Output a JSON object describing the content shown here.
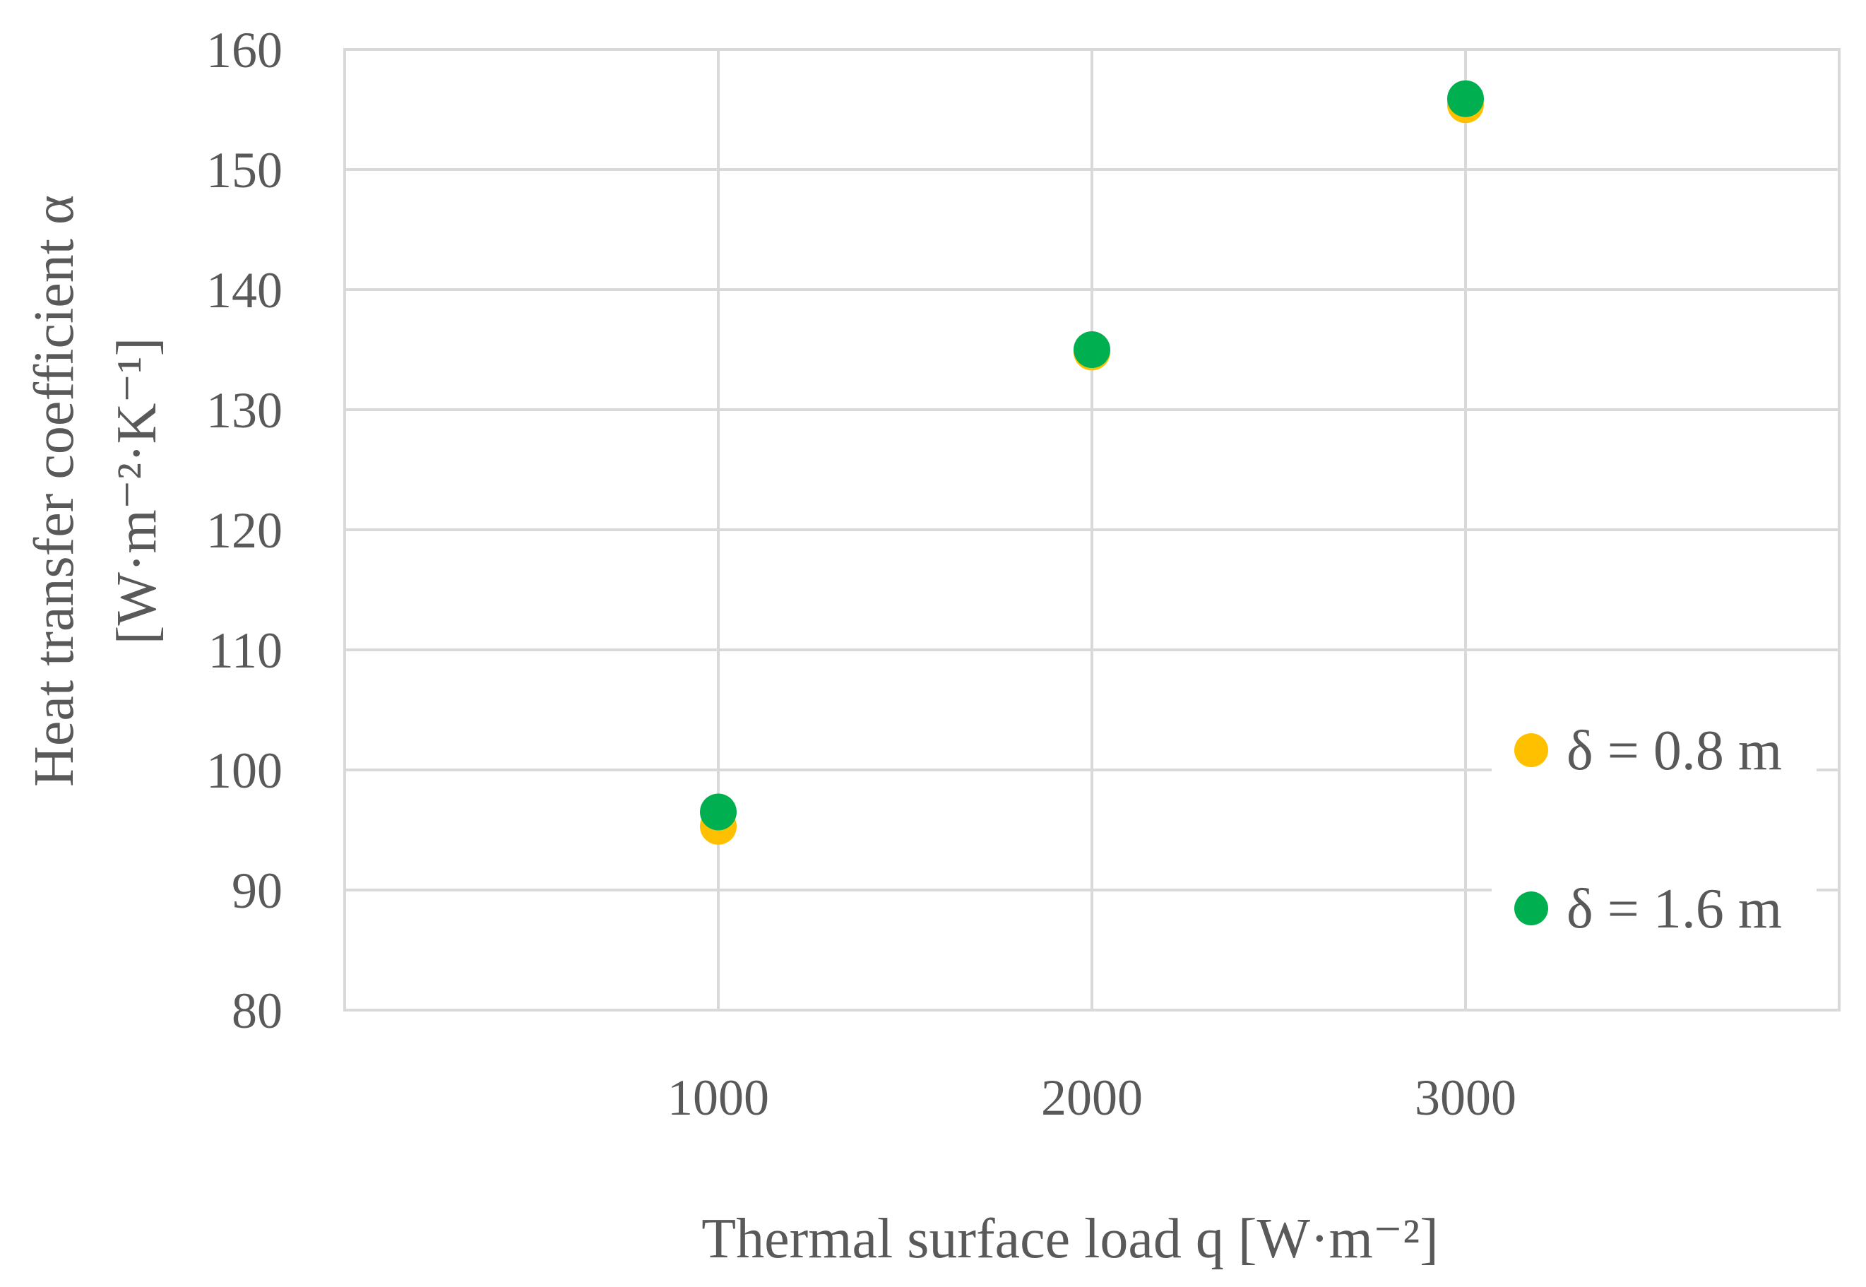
{
  "chart_data": {
    "type": "scatter",
    "title": "",
    "xlabel": "Thermal surface load q [W·m⁻²]",
    "ylabel_line1": "Heat transfer coefficient α",
    "ylabel_line2": "[W·m⁻²·K⁻¹]",
    "x_ticks": [
      "1000",
      "2000",
      "3000"
    ],
    "y_ticks": [
      "80",
      "90",
      "100",
      "110",
      "120",
      "130",
      "140",
      "150",
      "160"
    ],
    "xlim": [
      0,
      4000
    ],
    "ylim": [
      80,
      160
    ],
    "grid": true,
    "legend_position": "right",
    "series": [
      {
        "name": "δ = 0.8 m",
        "color": "#FFC000",
        "x": [
          1000,
          2000,
          3000
        ],
        "y": [
          95.3,
          134.8,
          155.4
        ]
      },
      {
        "name": "δ = 1.6 m",
        "color": "#00B050",
        "x": [
          1000,
          2000,
          3000
        ],
        "y": [
          96.5,
          135.0,
          155.9
        ]
      }
    ]
  }
}
